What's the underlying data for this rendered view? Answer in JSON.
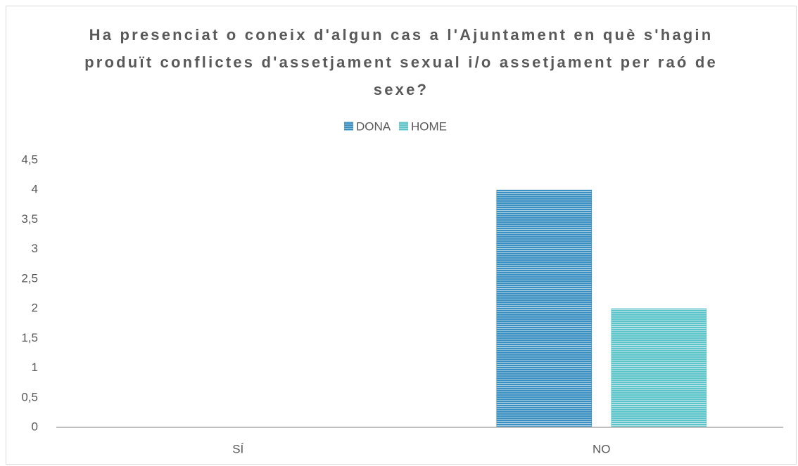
{
  "chart_data": {
    "type": "bar",
    "title": "Ha presenciat o coneix d'algun cas a l'Ajuntament en què s'hagin produït conflictes d'assetjament sexual i/o assetjament per raó de sexe?",
    "categories": [
      "SÍ",
      "NO"
    ],
    "series": [
      {
        "name": "DONA",
        "color": "#3a8fc1",
        "values": [
          0,
          4
        ]
      },
      {
        "name": "HOME",
        "color": "#5cc3c9",
        "values": [
          0,
          2
        ]
      }
    ],
    "ylim": [
      0,
      4.5
    ],
    "yticks": [
      0,
      {
        "value": 0.5,
        "label": "0,5"
      },
      1,
      {
        "value": 1.5,
        "label": "1,5"
      },
      2,
      {
        "value": 2.5,
        "label": "2,5"
      },
      3,
      {
        "value": 3.5,
        "label": "3,5"
      },
      4,
      {
        "value": 4.5,
        "label": "4,5"
      }
    ],
    "legend": "top"
  }
}
